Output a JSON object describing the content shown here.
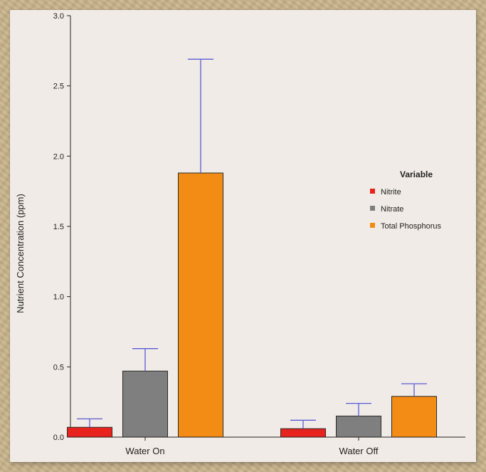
{
  "chart_data": {
    "type": "bar",
    "title": "",
    "xlabel": "",
    "ylabel": "Nutrient Concentration (ppm)",
    "ylim": [
      0,
      3.0
    ],
    "yticks": [
      "0.0",
      "0.5",
      "1.0",
      "1.5",
      "2.0",
      "2.5",
      "3.0"
    ],
    "categories": [
      "Water On",
      "Water Off"
    ],
    "legend": {
      "title": "Variable",
      "placement": "right"
    },
    "error_bar_color": "#5b5bd6",
    "series": [
      {
        "name": "Nitrite",
        "color": "#e8231e",
        "values": [
          0.07,
          0.06
        ],
        "errors": [
          0.06,
          0.06
        ]
      },
      {
        "name": "Nitrate",
        "color": "#7f7f7f",
        "values": [
          0.47,
          0.15
        ],
        "errors": [
          0.16,
          0.09
        ]
      },
      {
        "name": "Total Phosphorus",
        "color": "#f28c14",
        "values": [
          1.88,
          0.29
        ],
        "errors": [
          0.81,
          0.09
        ]
      }
    ]
  }
}
